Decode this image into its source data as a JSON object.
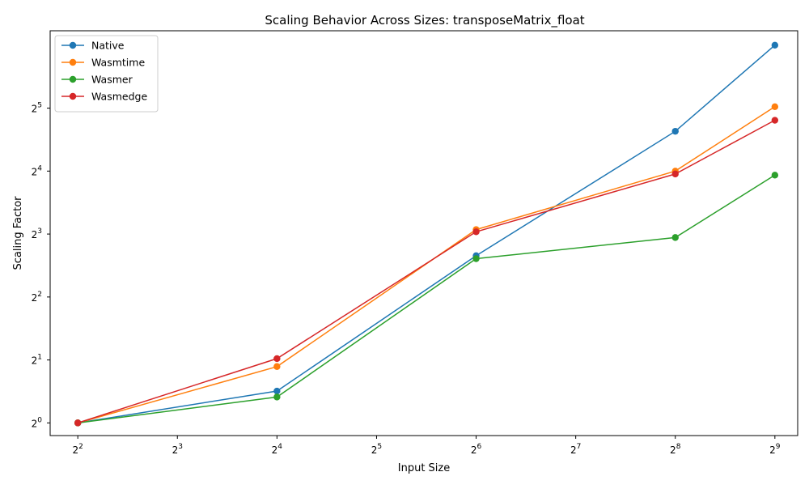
{
  "chart_data": {
    "type": "line",
    "title": "Scaling Behavior Across Sizes: transposeMatrix_float",
    "xlabel": "Input Size",
    "ylabel": "Scaling Factor",
    "x_scale": "log2",
    "y_scale": "log2",
    "xlim": [
      3.3,
      600
    ],
    "ylim": [
      0.87,
      75
    ],
    "x_ticks": [
      {
        "value": 4,
        "base": "2",
        "exp": "2"
      },
      {
        "value": 8,
        "base": "2",
        "exp": "3"
      },
      {
        "value": 16,
        "base": "2",
        "exp": "4"
      },
      {
        "value": 32,
        "base": "2",
        "exp": "5"
      },
      {
        "value": 64,
        "base": "2",
        "exp": "6"
      },
      {
        "value": 128,
        "base": "2",
        "exp": "7"
      },
      {
        "value": 256,
        "base": "2",
        "exp": "8"
      },
      {
        "value": 512,
        "base": "2",
        "exp": "9"
      }
    ],
    "y_ticks": [
      {
        "value": 1,
        "base": "2",
        "exp": "0"
      },
      {
        "value": 2,
        "base": "2",
        "exp": "1"
      },
      {
        "value": 4,
        "base": "2",
        "exp": "2"
      },
      {
        "value": 8,
        "base": "2",
        "exp": "3"
      },
      {
        "value": 16,
        "base": "2",
        "exp": "4"
      },
      {
        "value": 32,
        "base": "2",
        "exp": "5"
      }
    ],
    "x": [
      4,
      16,
      64,
      256,
      512
    ],
    "series": [
      {
        "name": "Native",
        "color": "#1f77b4",
        "values": [
          1.0,
          1.42,
          6.3,
          24.8,
          64.0
        ]
      },
      {
        "name": "Wasmtime",
        "color": "#ff7f0e",
        "values": [
          1.0,
          1.86,
          8.4,
          16.0,
          32.5
        ]
      },
      {
        "name": "Wasmer",
        "color": "#2ca02c",
        "values": [
          1.0,
          1.33,
          6.1,
          7.7,
          15.3
        ]
      },
      {
        "name": "Wasmedge",
        "color": "#d62728",
        "values": [
          1.0,
          2.03,
          8.2,
          15.5,
          28.0
        ]
      }
    ],
    "grid": false,
    "legend_position": "upper-left"
  }
}
